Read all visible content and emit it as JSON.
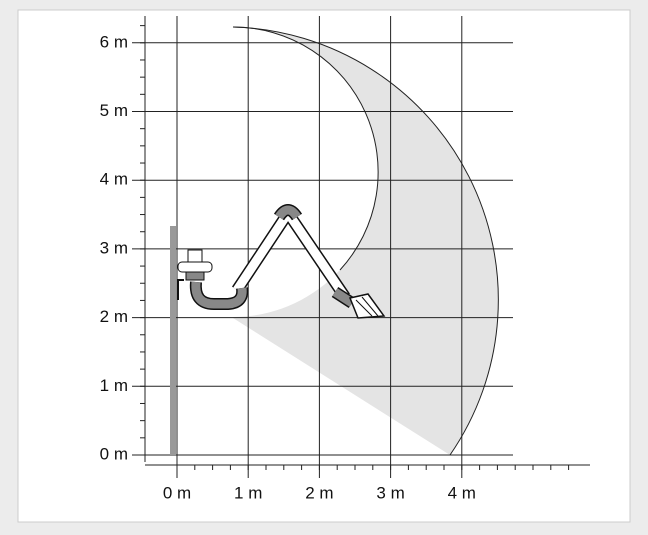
{
  "y_axis": {
    "labels": [
      "0 m",
      "1 m",
      "2 m",
      "3 m",
      "4 m",
      "5 m",
      "6 m"
    ]
  },
  "x_axis": {
    "labels": [
      "0 m",
      "1 m",
      "2 m",
      "3 m",
      "4 m"
    ]
  }
}
